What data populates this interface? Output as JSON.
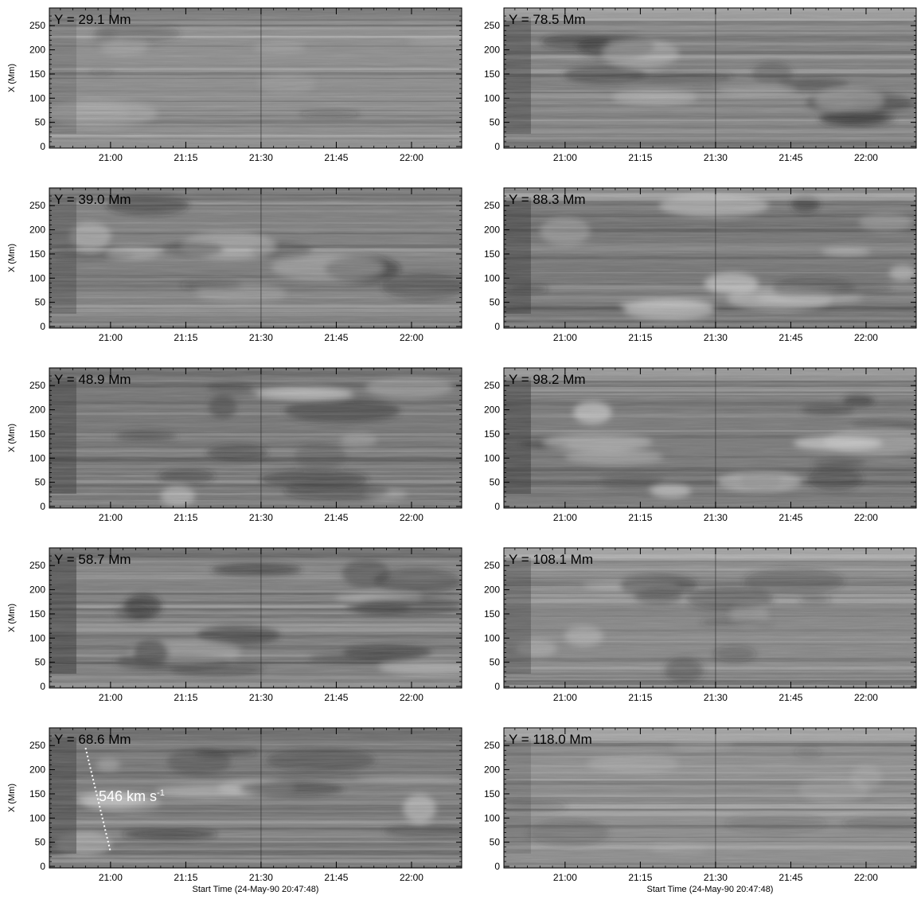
{
  "chart_data": [
    {
      "type": "heatmap",
      "title": "Y = 29.1 Mm",
      "ylabel": "X (Mm)",
      "xlabel": "",
      "ylim": [
        0,
        280
      ],
      "x_ticks": [
        "21:00",
        "21:15",
        "21:30",
        "21:45",
        "22:00"
      ],
      "y_ticks": [
        "0",
        "50",
        "100",
        "150",
        "200",
        "250"
      ]
    },
    {
      "type": "heatmap",
      "title": "Y = 78.5 Mm",
      "ylabel": "",
      "xlabel": "",
      "ylim": [
        0,
        280
      ],
      "x_ticks": [
        "21:00",
        "21:15",
        "21:30",
        "21:45",
        "22:00"
      ],
      "y_ticks": [
        "0",
        "50",
        "100",
        "150",
        "200",
        "250"
      ]
    },
    {
      "type": "heatmap",
      "title": "Y = 39.0 Mm",
      "ylabel": "X (Mm)",
      "xlabel": "",
      "ylim": [
        0,
        280
      ],
      "x_ticks": [
        "21:00",
        "21:15",
        "21:30",
        "21:45",
        "22:00"
      ],
      "y_ticks": [
        "0",
        "50",
        "100",
        "150",
        "200",
        "250"
      ]
    },
    {
      "type": "heatmap",
      "title": "Y = 88.3 Mm",
      "ylabel": "",
      "xlabel": "",
      "ylim": [
        0,
        280
      ],
      "x_ticks": [
        "21:00",
        "21:15",
        "21:30",
        "21:45",
        "22:00"
      ],
      "y_ticks": [
        "0",
        "50",
        "100",
        "150",
        "200",
        "250"
      ]
    },
    {
      "type": "heatmap",
      "title": "Y = 48.9 Mm",
      "ylabel": "X (Mm)",
      "xlabel": "",
      "ylim": [
        0,
        280
      ],
      "x_ticks": [
        "21:00",
        "21:15",
        "21:30",
        "21:45",
        "22:00"
      ],
      "y_ticks": [
        "0",
        "50",
        "100",
        "150",
        "200",
        "250"
      ]
    },
    {
      "type": "heatmap",
      "title": "Y = 98.2 Mm",
      "ylabel": "",
      "xlabel": "",
      "ylim": [
        0,
        280
      ],
      "x_ticks": [
        "21:00",
        "21:15",
        "21:30",
        "21:45",
        "22:00"
      ],
      "y_ticks": [
        "0",
        "50",
        "100",
        "150",
        "200",
        "250"
      ]
    },
    {
      "type": "heatmap",
      "title": "Y = 58.7 Mm",
      "ylabel": "X (Mm)",
      "xlabel": "",
      "ylim": [
        0,
        280
      ],
      "x_ticks": [
        "21:00",
        "21:15",
        "21:30",
        "21:45",
        "22:00"
      ],
      "y_ticks": [
        "0",
        "50",
        "100",
        "150",
        "200",
        "250"
      ]
    },
    {
      "type": "heatmap",
      "title": "Y = 108.1 Mm",
      "ylabel": "",
      "xlabel": "",
      "ylim": [
        0,
        280
      ],
      "x_ticks": [
        "21:00",
        "21:15",
        "21:30",
        "21:45",
        "22:00"
      ],
      "y_ticks": [
        "0",
        "50",
        "100",
        "150",
        "200",
        "250"
      ]
    },
    {
      "type": "heatmap",
      "title": "Y = 68.6 Mm",
      "ylabel": "X (Mm)",
      "xlabel": "Start Time (24-May-90 20:47:48)",
      "ylim": [
        0,
        280
      ],
      "x_ticks": [
        "21:00",
        "21:15",
        "21:30",
        "21:45",
        "22:00"
      ],
      "y_ticks": [
        "0",
        "50",
        "100",
        "150",
        "200",
        "250"
      ],
      "annotation": {
        "text": "546 km s",
        "superscript": "-1"
      }
    },
    {
      "type": "heatmap",
      "title": "Y = 118.0 Mm",
      "ylabel": "",
      "xlabel": "Start Time (24-May-90 20:47:48)",
      "ylim": [
        0,
        280
      ],
      "x_ticks": [
        "21:00",
        "21:15",
        "21:30",
        "21:45",
        "22:00"
      ],
      "y_ticks": [
        "0",
        "50",
        "100",
        "150",
        "200",
        "250"
      ]
    }
  ]
}
